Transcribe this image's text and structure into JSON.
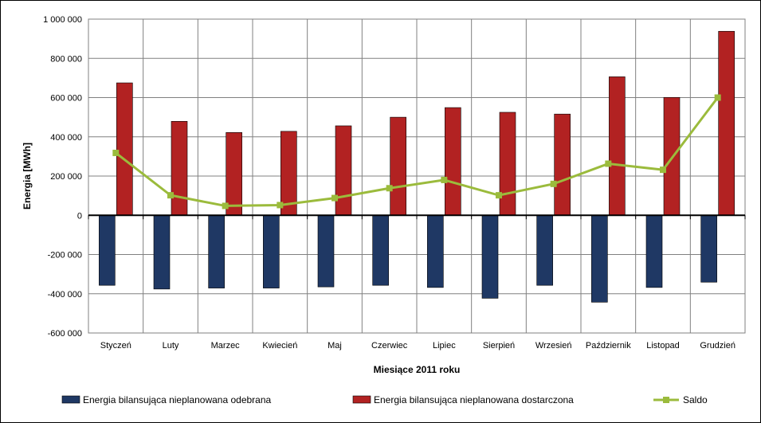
{
  "chart_data": {
    "type": "bar",
    "title": "",
    "xlabel": "Miesiące 2011  roku",
    "ylabel": "Energia  [MWh]",
    "ylim": [
      -600000,
      1000000
    ],
    "yticks": [
      1000000,
      800000,
      600000,
      400000,
      200000,
      0,
      -200000,
      -400000,
      -600000
    ],
    "ytick_labels": [
      "1 000 000",
      "800 000",
      "600 000",
      "400 000",
      "200 000",
      "0",
      "-200 000",
      "-400 000",
      "-600 000"
    ],
    "grid": true,
    "legend_position": "bottom",
    "categories": [
      "Styczeń",
      "Luty",
      "Marzec",
      "Kwiecień",
      "Maj",
      "Czerwiec",
      "Lipiec",
      "Sierpień",
      "Wrzesień",
      "Październik",
      "Listopad",
      "Grudzień"
    ],
    "series": [
      {
        "name": "Energia bilansująca nieplanowana odebrana",
        "type": "bar",
        "color": "#1f3864",
        "values": [
          -357000,
          -376000,
          -371000,
          -371000,
          -365000,
          -357000,
          -368000,
          -423000,
          -357000,
          -443000,
          -368000,
          -341000
        ]
      },
      {
        "name": "Energia bilansująca nieplanowana dostarczona",
        "type": "bar",
        "color": "#b22222",
        "values": [
          675000,
          479000,
          422000,
          428000,
          456000,
          500000,
          549000,
          525000,
          516000,
          706000,
          601000,
          938000
        ]
      },
      {
        "name": "Saldo",
        "type": "line",
        "color": "#9bbb3c",
        "values": [
          318000,
          102000,
          48000,
          52000,
          88000,
          138000,
          180000,
          102000,
          160000,
          263000,
          232000,
          600000
        ]
      }
    ]
  }
}
